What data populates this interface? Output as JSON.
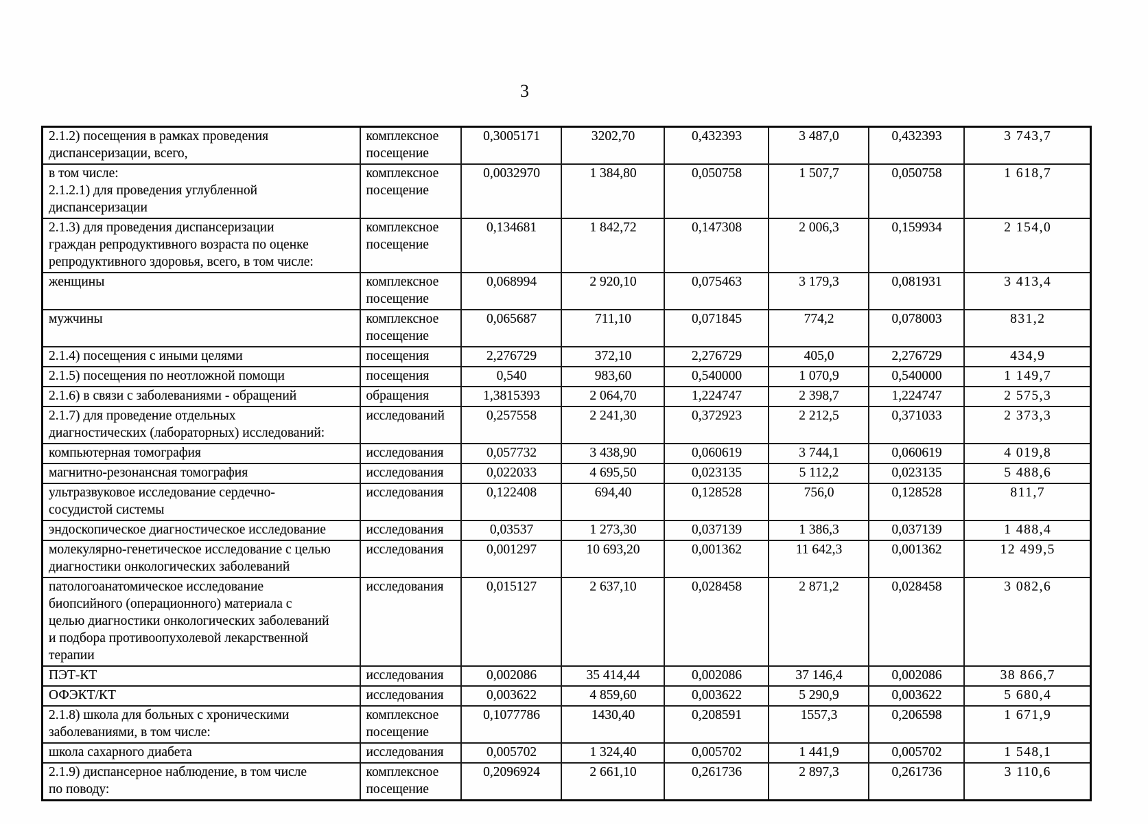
{
  "page": {
    "number": "3"
  },
  "table": {
    "rows": [
      {
        "desc": "2.1.2) посещения в рамках проведения\nдиспансеризации, всего,",
        "unit": "комплексное\nпосещение",
        "values": [
          "0,3005171",
          "3202,70",
          "0,432393",
          "3 487,0",
          "0,432393",
          "3 743,7"
        ]
      },
      {
        "desc": "в том числе:\n2.1.2.1) для проведения углубленной\nдиспансеризации",
        "unit": "комплексное\nпосещение",
        "values": [
          "0,0032970",
          "1 384,80",
          "0,050758",
          "1 507,7",
          "0,050758",
          "1 618,7"
        ]
      },
      {
        "desc": "2.1.3) для проведения диспансеризации\nграждан репродуктивного возраста по оценке\nрепродуктивного здоровья, всего, в том числе:",
        "unit": "комплексное\nпосещение",
        "values": [
          "0,134681",
          "1 842,72",
          "0,147308",
          "2 006,3",
          "0,159934",
          "2 154,0"
        ]
      },
      {
        "desc": "женщины",
        "unit": "комплексное\nпосещение",
        "values": [
          "0,068994",
          "2 920,10",
          "0,075463",
          "3 179,3",
          "0,081931",
          "3 413,4"
        ]
      },
      {
        "desc": "мужчины",
        "unit": "комплексное\nпосещение",
        "values": [
          "0,065687",
          "711,10",
          "0,071845",
          "774,2",
          "0,078003",
          "831,2"
        ]
      },
      {
        "desc": "2.1.4) посещения с иными целями",
        "unit": "посещения",
        "values": [
          "2,276729",
          "372,10",
          "2,276729",
          "405,0",
          "2,276729",
          "434,9"
        ]
      },
      {
        "desc": "2.1.5) посещения по неотложной помощи",
        "unit": "посещения",
        "values": [
          "0,540",
          "983,60",
          "0,540000",
          "1 070,9",
          "0,540000",
          "1 149,7"
        ]
      },
      {
        "desc": "2.1.6) в связи с заболеваниями - обращений",
        "unit": "обращения",
        "values": [
          "1,3815393",
          "2 064,70",
          "1,224747",
          "2 398,7",
          "1,224747",
          "2 575,3"
        ]
      },
      {
        "desc": "2.1.7) для проведение отдельных\nдиагностических (лабораторных) исследований:",
        "unit": "исследований",
        "values": [
          "0,257558",
          "2 241,30",
          "0,372923",
          "2 212,5",
          "0,371033",
          "2 373,3"
        ]
      },
      {
        "desc": "компьютерная томография",
        "unit": "исследования",
        "values": [
          "0,057732",
          "3 438,90",
          "0,060619",
          "3 744,1",
          "0,060619",
          "4 019,8"
        ]
      },
      {
        "desc": "магнитно-резонансная томография",
        "unit": "исследования",
        "values": [
          "0,022033",
          "4 695,50",
          "0,023135",
          "5 112,2",
          "0,023135",
          "5 488,6"
        ]
      },
      {
        "desc": "ультразвуковое исследование сердечно-\nсосудистой системы",
        "unit": "исследования",
        "values": [
          "0,122408",
          "694,40",
          "0,128528",
          "756,0",
          "0,128528",
          "811,7"
        ]
      },
      {
        "desc": "эндоскопическое диагностическое исследование",
        "unit": "исследования",
        "values": [
          "0,03537",
          "1 273,30",
          "0,037139",
          "1 386,3",
          "0,037139",
          "1 488,4"
        ]
      },
      {
        "desc": "молекулярно-генетическое исследование с целью\nдиагностики онкологических заболеваний",
        "unit": "исследования",
        "values": [
          "0,001297",
          "10 693,20",
          "0,001362",
          "11 642,3",
          "0,001362",
          "12 499,5"
        ]
      },
      {
        "desc": "патологоанатомическое исследование\nбиопсийного (операционного) материала с\nцелью диагностики онкологических заболеваний\nи подбора противоопухолевой лекарственной\nтерапии",
        "unit": "исследования",
        "values": [
          "0,015127",
          "2 637,10",
          "0,028458",
          "2 871,2",
          "0,028458",
          "3 082,6"
        ]
      },
      {
        "desc": "ПЭТ-КТ",
        "unit": "исследования",
        "values": [
          "0,002086",
          "35 414,44",
          "0,002086",
          "37 146,4",
          "0,002086",
          "38 866,7"
        ]
      },
      {
        "desc": "ОФЭКТ/КТ",
        "unit": "исследования",
        "values": [
          "0,003622",
          "4 859,60",
          "0,003622",
          "5 290,9",
          "0,003622",
          "5 680,4"
        ]
      },
      {
        "desc": "2.1.8) школа для больных с хроническими\nзаболеваниями, в том числе:",
        "unit": "комплексное\nпосещение",
        "values": [
          "0,1077786",
          "1430,40",
          "0,208591",
          "1557,3",
          "0,206598",
          "1 671,9"
        ]
      },
      {
        "desc": "школа сахарного диабета",
        "unit": "исследования",
        "values": [
          "0,005702",
          "1 324,40",
          "0,005702",
          "1 441,9",
          "0,005702",
          "1 548,1"
        ]
      },
      {
        "desc": "2.1.9) диспансерное наблюдение, в том числе\nпо поводу:",
        "unit": "комплексное\nпосещение",
        "values": [
          "0,2096924",
          "2 661,10",
          "0,261736",
          "2 897,3",
          "0,261736",
          "3 110,6"
        ]
      }
    ]
  }
}
